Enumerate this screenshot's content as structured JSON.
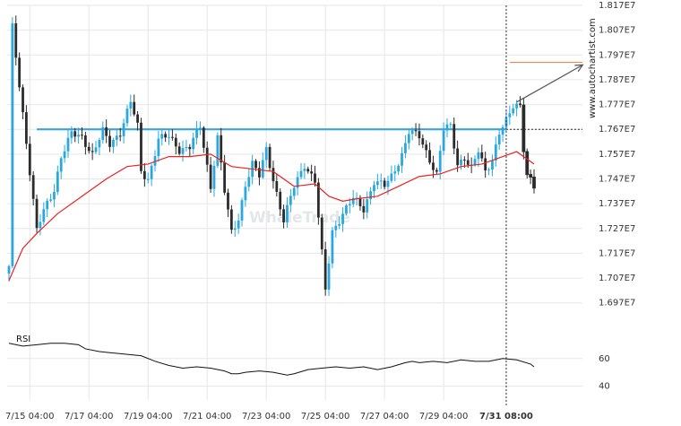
{
  "chart_data": {
    "type": "candlestick",
    "watermark": "WhaleTrade",
    "brand": "www.autochartist.com",
    "y_ticks": [
      "1.817E7",
      "1.807E7",
      "1.797E7",
      "1.787E7",
      "1.777E7",
      "1.767E7",
      "1.757E7",
      "1.747E7",
      "1.737E7",
      "1.727E7",
      "1.717E7",
      "1.707E7",
      "1.697E7"
    ],
    "y_tick_values": [
      18170000,
      18070000,
      17970000,
      17870000,
      17770000,
      17670000,
      17570000,
      17470000,
      17370000,
      17270000,
      17170000,
      17070000,
      16970000
    ],
    "ylim": [
      16940000,
      18170000
    ],
    "x_ticks": [
      "7/15 04:00",
      "7/17 04:00",
      "7/19 04:00",
      "7/21 04:00",
      "7/23 04:00",
      "7/25 04:00",
      "7/27 04:00",
      "7/29 04:00",
      "7/31 08:00"
    ],
    "x_tick_index": [
      6,
      23,
      40,
      57,
      74,
      91,
      108,
      125,
      143
    ],
    "n_bars": 152,
    "vline_index": 143,
    "support_level": 17670000,
    "support_start_index": 8,
    "current_level": 17670000,
    "target_level": 17940000,
    "target_start_index": 144,
    "forecast_arrow": {
      "from_index": 146,
      "from_value": 17780000,
      "to_index": 165,
      "to_value": 17930000
    },
    "anchors": [
      [
        0,
        17110000
      ],
      [
        1,
        18080000
      ],
      [
        3,
        17850000
      ],
      [
        5,
        17620000
      ],
      [
        8,
        17260000
      ],
      [
        10,
        17340000
      ],
      [
        13,
        17430000
      ],
      [
        15,
        17560000
      ],
      [
        18,
        17650000
      ],
      [
        21,
        17640000
      ],
      [
        24,
        17570000
      ],
      [
        27,
        17660000
      ],
      [
        29,
        17610000
      ],
      [
        32,
        17660000
      ],
      [
        35,
        17780000
      ],
      [
        37,
        17680000
      ],
      [
        38,
        17500000
      ],
      [
        40,
        17470000
      ],
      [
        43,
        17630000
      ],
      [
        46,
        17640000
      ],
      [
        49,
        17590000
      ],
      [
        52,
        17600000
      ],
      [
        55,
        17680000
      ],
      [
        58,
        17440000
      ],
      [
        60,
        17640000
      ],
      [
        62,
        17420000
      ],
      [
        64,
        17250000
      ],
      [
        66,
        17310000
      ],
      [
        68,
        17450000
      ],
      [
        70,
        17530000
      ],
      [
        72,
        17480000
      ],
      [
        74,
        17590000
      ],
      [
        76,
        17470000
      ],
      [
        79,
        17300000
      ],
      [
        82,
        17440000
      ],
      [
        85,
        17530000
      ],
      [
        88,
        17460000
      ],
      [
        91,
        17020000
      ],
      [
        93,
        17260000
      ],
      [
        96,
        17330000
      ],
      [
        99,
        17390000
      ],
      [
        102,
        17350000
      ],
      [
        105,
        17460000
      ],
      [
        108,
        17440000
      ],
      [
        110,
        17480000
      ],
      [
        113,
        17570000
      ],
      [
        115,
        17660000
      ],
      [
        118,
        17640000
      ],
      [
        120,
        17580000
      ],
      [
        123,
        17490000
      ],
      [
        125,
        17670000
      ],
      [
        127,
        17680000
      ],
      [
        129,
        17530000
      ],
      [
        131,
        17560000
      ],
      [
        133,
        17510000
      ],
      [
        135,
        17580000
      ],
      [
        137,
        17500000
      ],
      [
        139,
        17550000
      ],
      [
        141,
        17660000
      ],
      [
        143,
        17700000
      ],
      [
        145,
        17760000
      ],
      [
        147,
        17770000
      ],
      [
        148,
        17600000
      ],
      [
        149,
        17490000
      ],
      [
        150,
        17470000
      ],
      [
        151,
        17440000
      ]
    ],
    "ma_points": [
      [
        0,
        17060000
      ],
      [
        4,
        17190000
      ],
      [
        8,
        17250000
      ],
      [
        14,
        17330000
      ],
      [
        20,
        17390000
      ],
      [
        28,
        17470000
      ],
      [
        34,
        17520000
      ],
      [
        40,
        17530000
      ],
      [
        46,
        17560000
      ],
      [
        52,
        17560000
      ],
      [
        58,
        17570000
      ],
      [
        64,
        17520000
      ],
      [
        70,
        17510000
      ],
      [
        76,
        17500000
      ],
      [
        82,
        17440000
      ],
      [
        88,
        17450000
      ],
      [
        92,
        17400000
      ],
      [
        96,
        17380000
      ],
      [
        100,
        17390000
      ],
      [
        106,
        17400000
      ],
      [
        112,
        17440000
      ],
      [
        118,
        17480000
      ],
      [
        124,
        17490000
      ],
      [
        130,
        17520000
      ],
      [
        136,
        17530000
      ],
      [
        142,
        17560000
      ],
      [
        146,
        17580000
      ],
      [
        151,
        17530000
      ]
    ],
    "rsi": {
      "label": "RSI",
      "ticks": [
        "60",
        "40"
      ],
      "tick_values": [
        60,
        40
      ],
      "ylim": [
        30,
        78
      ],
      "points": [
        [
          0,
          71
        ],
        [
          4,
          69
        ],
        [
          8,
          70
        ],
        [
          12,
          71
        ],
        [
          16,
          71
        ],
        [
          20,
          70
        ],
        [
          22,
          67
        ],
        [
          26,
          65
        ],
        [
          30,
          64
        ],
        [
          34,
          63
        ],
        [
          38,
          62
        ],
        [
          42,
          58
        ],
        [
          46,
          55
        ],
        [
          50,
          53
        ],
        [
          54,
          54
        ],
        [
          58,
          53
        ],
        [
          62,
          51
        ],
        [
          64,
          49
        ],
        [
          66,
          49
        ],
        [
          68,
          50
        ],
        [
          72,
          51
        ],
        [
          76,
          50
        ],
        [
          80,
          48
        ],
        [
          82,
          49
        ],
        [
          86,
          52
        ],
        [
          90,
          53
        ],
        [
          94,
          54
        ],
        [
          98,
          53
        ],
        [
          102,
          54
        ],
        [
          106,
          52
        ],
        [
          110,
          54
        ],
        [
          114,
          57
        ],
        [
          116,
          58
        ],
        [
          118,
          57
        ],
        [
          122,
          58
        ],
        [
          126,
          57
        ],
        [
          130,
          59
        ],
        [
          134,
          58
        ],
        [
          138,
          58
        ],
        [
          142,
          60
        ],
        [
          146,
          59
        ],
        [
          150,
          56
        ],
        [
          151,
          54
        ]
      ]
    }
  },
  "colors": {
    "bull": "#29a8e0",
    "bear": "#2b2b2b",
    "support": "#36a4de",
    "ma": "#e82323",
    "target": "#f07a33",
    "arrow": "#555555",
    "grid": "#e6e6e6",
    "rsi": "#111111"
  }
}
